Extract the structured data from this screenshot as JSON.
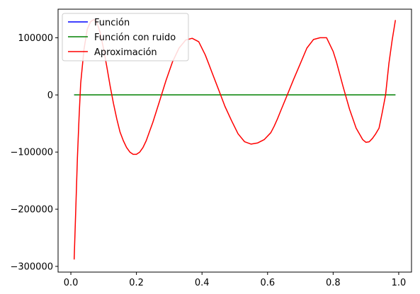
{
  "chart_data": {
    "type": "line",
    "title": "",
    "xlabel": "",
    "ylabel": "",
    "xlim": [
      -0.039,
      1.039
    ],
    "ylim": [
      -310000,
      150000
    ],
    "xticks": [
      0.0,
      0.2,
      0.4,
      0.6,
      0.8,
      1.0
    ],
    "xtick_labels": [
      "0.0",
      "0.2",
      "0.4",
      "0.6",
      "0.8",
      "1.0"
    ],
    "yticks": [
      -300000,
      -200000,
      -100000,
      0,
      100000
    ],
    "ytick_labels": [
      "−300000",
      "−200000",
      "−100000",
      "0",
      "100000"
    ],
    "grid": false,
    "legend": {
      "position": "top-left",
      "entries": [
        {
          "label": "Función",
          "color": "#0000ff"
        },
        {
          "label": "Función con ruido",
          "color": "#008000"
        },
        {
          "label": "Aproximación",
          "color": "#ff0000"
        }
      ]
    },
    "series": [
      {
        "name": "Función",
        "color": "#0000ff",
        "x": [
          0.01,
          0.99
        ],
        "y": [
          0,
          0
        ]
      },
      {
        "name": "Función con ruido",
        "color": "#008000",
        "x": [
          0.01,
          0.99
        ],
        "y": [
          0,
          0
        ]
      },
      {
        "name": "Aproximación",
        "color": "#ff0000",
        "x": [
          0.01,
          0.015,
          0.02,
          0.025,
          0.03,
          0.04,
          0.05,
          0.06,
          0.07,
          0.08,
          0.09,
          0.1,
          0.11,
          0.12,
          0.13,
          0.14,
          0.15,
          0.16,
          0.17,
          0.18,
          0.19,
          0.2,
          0.21,
          0.22,
          0.23,
          0.24,
          0.25,
          0.27,
          0.29,
          0.31,
          0.33,
          0.35,
          0.37,
          0.39,
          0.41,
          0.42,
          0.43,
          0.45,
          0.47,
          0.49,
          0.51,
          0.53,
          0.55,
          0.57,
          0.59,
          0.61,
          0.62,
          0.63,
          0.64,
          0.66,
          0.68,
          0.7,
          0.72,
          0.74,
          0.76,
          0.77,
          0.78,
          0.8,
          0.81,
          0.83,
          0.85,
          0.87,
          0.89,
          0.9,
          0.91,
          0.92,
          0.93,
          0.94,
          0.95,
          0.96,
          0.97,
          0.98,
          0.99
        ],
        "y": [
          -288000,
          -200000,
          -110000,
          -40000,
          20000,
          80000,
          115000,
          128000,
          132000,
          126000,
          108000,
          80000,
          48000,
          15000,
          -15000,
          -42000,
          -65000,
          -80000,
          -92000,
          -100000,
          -104000,
          -104000,
          -100000,
          -92000,
          -80000,
          -64000,
          -48000,
          -12000,
          25000,
          58000,
          82000,
          96000,
          99000,
          93000,
          70000,
          55000,
          40000,
          10000,
          -20000,
          -45000,
          -68000,
          -82000,
          -86000,
          -84000,
          -78000,
          -66000,
          -55000,
          -42000,
          -28000,
          0,
          28000,
          55000,
          82000,
          97000,
          100000,
          100000,
          100000,
          76000,
          58000,
          15000,
          -25000,
          -58000,
          -78000,
          -83000,
          -82000,
          -76000,
          -68000,
          -58000,
          -30000,
          0,
          55000,
          96000,
          131000
        ]
      }
    ]
  }
}
